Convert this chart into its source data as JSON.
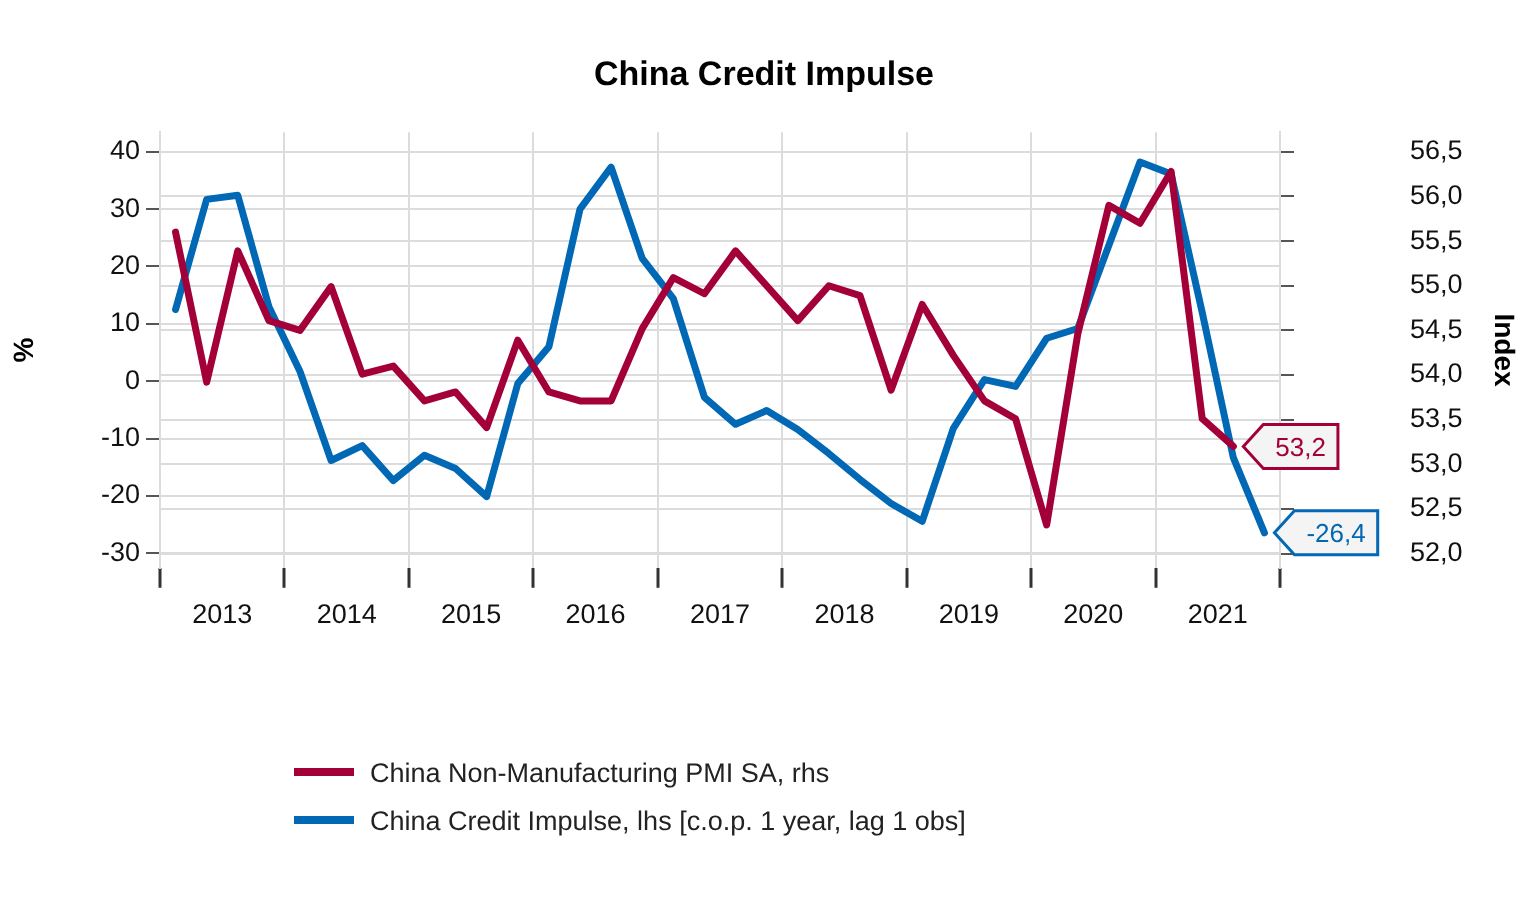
{
  "chart_data": {
    "type": "line",
    "title": "China Credit Impulse",
    "ylabel": "%",
    "y2label": "Index",
    "x": [
      2013.125,
      2013.375,
      2013.625,
      2013.875,
      2014.125,
      2014.375,
      2014.625,
      2014.875,
      2015.125,
      2015.375,
      2015.625,
      2015.875,
      2016.125,
      2016.375,
      2016.625,
      2016.875,
      2017.125,
      2017.375,
      2017.625,
      2017.875,
      2018.125,
      2018.375,
      2018.625,
      2018.875,
      2019.125,
      2019.375,
      2019.625,
      2019.875,
      2020.125,
      2020.375,
      2020.625,
      2020.875,
      2021.125,
      2021.375,
      2021.625,
      2021.875
    ],
    "series": [
      {
        "name": "China Non-Manufacturing PMI SA, rhs",
        "color": "#a3003a",
        "axis": "y2",
        "values": [
          55.6,
          53.92,
          55.39,
          54.61,
          54.5,
          54.99,
          54.01,
          54.1,
          53.71,
          53.81,
          53.41,
          54.39,
          53.81,
          53.71,
          53.71,
          54.52,
          55.09,
          54.91,
          55.39,
          55.0,
          54.61,
          55.0,
          54.89,
          53.83,
          54.79,
          54.22,
          53.71,
          53.51,
          52.32,
          54.46,
          55.9,
          55.7,
          56.28,
          53.51,
          53.2,
          null
        ],
        "value_labels": [
          null,
          null,
          null,
          null,
          null,
          null,
          null,
          null,
          null,
          null,
          null,
          null,
          null,
          null,
          null,
          null,
          null,
          null,
          null,
          null,
          null,
          null,
          null,
          null,
          null,
          null,
          null,
          null,
          null,
          null,
          null,
          null,
          null,
          null,
          "53,2",
          null
        ]
      },
      {
        "name": "China Credit Impulse, lhs [c.o.p. 1 year, lag 1 obs]",
        "color": "#0068b4",
        "axis": "y",
        "values": [
          12.5,
          31.7,
          32.4,
          13,
          1.7,
          -13.8,
          -11.2,
          -17.3,
          -12.9,
          -15.2,
          -20.1,
          -0.4,
          6,
          30,
          37.3,
          21.4,
          14.4,
          -2.8,
          -7.5,
          -5.1,
          -8.4,
          -12.6,
          -17.1,
          -21.3,
          -24.4,
          -8.2,
          0.3,
          -0.9,
          7.5,
          9.2,
          23.7,
          38.2,
          36.1,
          12,
          -13.3,
          -26.4
        ],
        "value_labels": [
          null,
          null,
          null,
          null,
          null,
          null,
          null,
          null,
          null,
          null,
          null,
          null,
          null,
          null,
          null,
          null,
          null,
          null,
          null,
          null,
          null,
          null,
          null,
          null,
          null,
          null,
          null,
          null,
          null,
          null,
          null,
          null,
          null,
          null,
          null,
          "-26,4"
        ]
      }
    ],
    "xlim": [
      2013,
      2022
    ],
    "xticks": [
      {
        "value": 2013,
        "label": null
      },
      {
        "value": 2013.5,
        "label": "2013"
      },
      {
        "value": 2014,
        "label": null
      },
      {
        "value": 2014.5,
        "label": "2014"
      },
      {
        "value": 2015,
        "label": null
      },
      {
        "value": 2015.5,
        "label": "2015"
      },
      {
        "value": 2016,
        "label": null
      },
      {
        "value": 2016.5,
        "label": "2016"
      },
      {
        "value": 2017,
        "label": null
      },
      {
        "value": 2017.5,
        "label": "2017"
      },
      {
        "value": 2018,
        "label": null
      },
      {
        "value": 2018.5,
        "label": "2018"
      },
      {
        "value": 2019,
        "label": null
      },
      {
        "value": 2019.5,
        "label": "2019"
      },
      {
        "value": 2020,
        "label": null
      },
      {
        "value": 2020.5,
        "label": "2020"
      },
      {
        "value": 2021,
        "label": null
      },
      {
        "value": 2021.5,
        "label": "2021"
      },
      {
        "value": 2022,
        "label": null
      }
    ],
    "ylim": [
      -32.5,
      43.4
    ],
    "yticks": [
      -30,
      -20,
      -10,
      0,
      10,
      20,
      30,
      40
    ],
    "y2lim": [
      51.84,
      56.72
    ],
    "y2ticks": [
      {
        "value": 52,
        "label": "52,0"
      },
      {
        "value": 52.5,
        "label": "52,5"
      },
      {
        "value": 53,
        "label": "53,0"
      },
      {
        "value": 53.5,
        "label": "53,5"
      },
      {
        "value": 54,
        "label": "54,0"
      },
      {
        "value": 54.5,
        "label": "54,5"
      },
      {
        "value": 55,
        "label": "55,0"
      },
      {
        "value": 55.5,
        "label": "55,5"
      },
      {
        "value": 56,
        "label": "56,0"
      },
      {
        "value": 56.5,
        "label": "56,5"
      }
    ],
    "grid": true,
    "legend": "bottom",
    "marker": "none",
    "line_style": "solid"
  }
}
